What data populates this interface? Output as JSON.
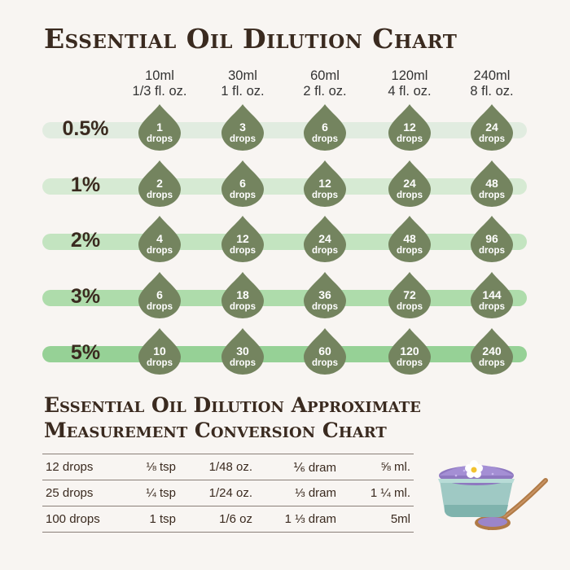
{
  "title": "Essential Oil Dilution Chart",
  "colors": {
    "drop": "#74845f",
    "text": "#3a2a1f",
    "band_light": "#dbe9d8",
    "band_dark": "#96d196",
    "background": "#f8f5f2"
  },
  "chart_data": {
    "type": "table",
    "title": "Essential Oil Dilution Chart",
    "columns": [
      {
        "ml": "10ml",
        "oz": "1/3 fl. oz."
      },
      {
        "ml": "30ml",
        "oz": "1 fl. oz."
      },
      {
        "ml": "60ml",
        "oz": "2 fl. oz."
      },
      {
        "ml": "120ml",
        "oz": "4 fl. oz."
      },
      {
        "ml": "240ml",
        "oz": "8 fl. oz."
      }
    ],
    "rows": [
      {
        "label": "0.5%",
        "values": [
          "1",
          "3",
          "6",
          "12",
          "24"
        ]
      },
      {
        "label": "1%",
        "values": [
          "2",
          "6",
          "12",
          "24",
          "48"
        ]
      },
      {
        "label": "2%",
        "values": [
          "4",
          "12",
          "24",
          "48",
          "96"
        ]
      },
      {
        "label": "3%",
        "values": [
          "6",
          "18",
          "36",
          "72",
          "144"
        ]
      },
      {
        "label": "5%",
        "values": [
          "10",
          "30",
          "60",
          "120",
          "240"
        ]
      }
    ],
    "unit": "drops"
  },
  "conversion": {
    "title_line1": "Essential Oil Dilution Approximate",
    "title_line2": "Measurement Conversion Chart",
    "rows": [
      [
        "12 drops",
        "⅛ tsp",
        "1/48 oz.",
        "⅙ dram",
        "⅝ ml."
      ],
      [
        "25 drops",
        "¼ tsp",
        "1/24 oz.",
        "⅓ dram",
        "1 ¼ ml."
      ],
      [
        "100 drops",
        "1 tsp",
        "1/6 oz",
        "1 ⅓ dram",
        "5ml"
      ]
    ]
  },
  "illustration": {
    "icon": "salt-bowl-with-spoon-and-flower-icon"
  }
}
